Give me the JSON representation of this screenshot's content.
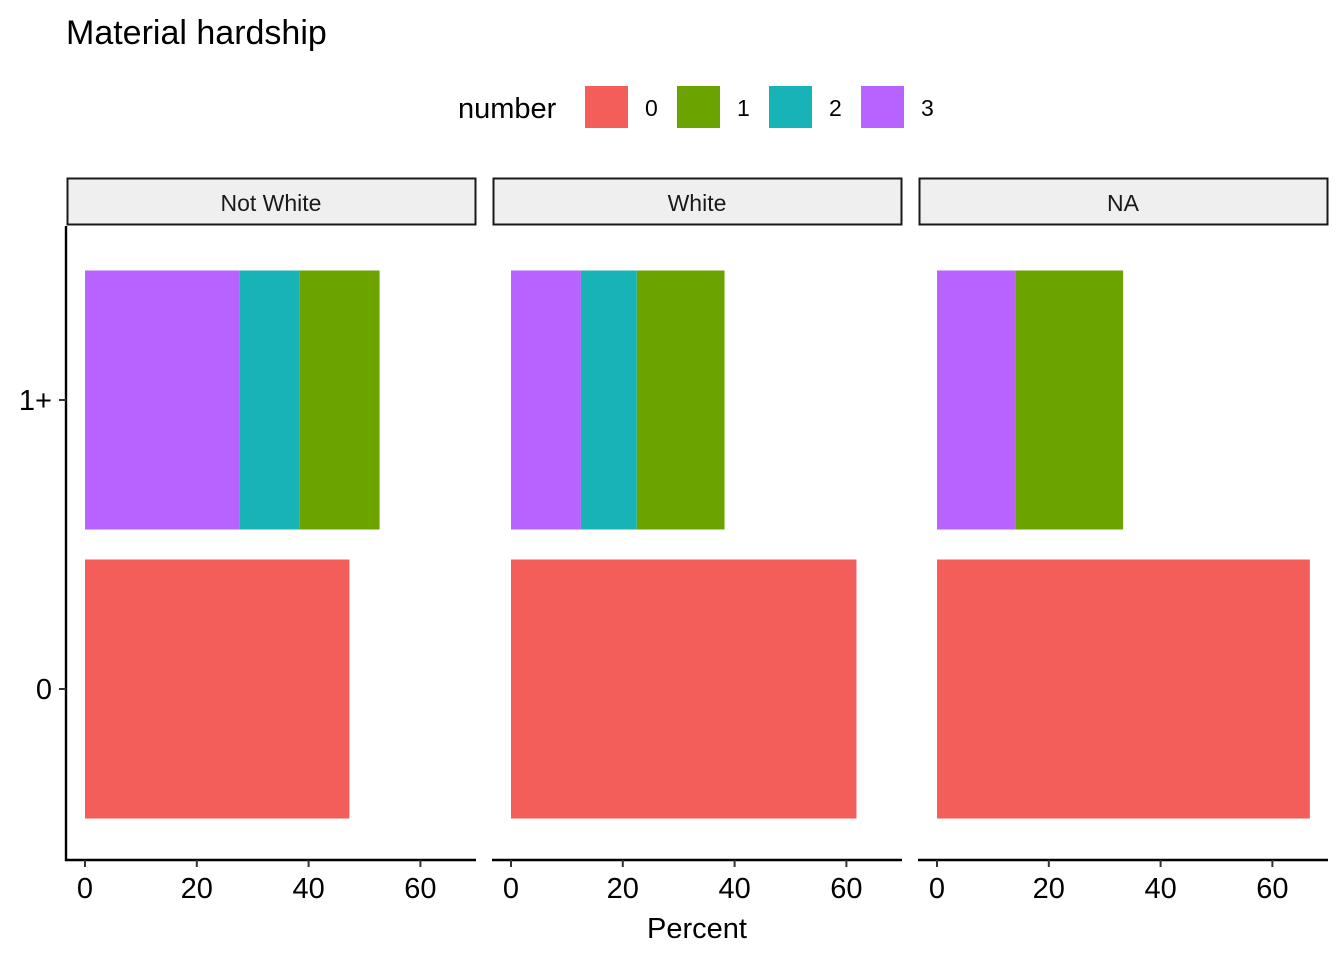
{
  "chart_data": {
    "type": "bar",
    "orientation": "horizontal",
    "stacked": true,
    "title": "Material hardship",
    "xlabel": "Percent",
    "ylabel": "",
    "xlim": [
      0,
      70
    ],
    "x_ticks": [
      0,
      20,
      40,
      60
    ],
    "categories": [
      "1+",
      "0"
    ],
    "legend": {
      "title": "number",
      "placement": "top",
      "entries": [
        {
          "name": "0",
          "color": "#F8766D"
        },
        {
          "name": "1",
          "color": "#7CAE00"
        },
        {
          "name": "2",
          "color": "#00BFC4"
        },
        {
          "name": "3",
          "color": "#C77CFF"
        }
      ]
    },
    "colors": {
      "0": "#F35E5A",
      "1": "#6BA400",
      "2": "#17B3B7",
      "3": "#B862FF"
    },
    "grid": false,
    "facets": [
      {
        "label": "Not White",
        "bars": [
          {
            "category": "1+",
            "segments": [
              {
                "number": "3",
                "value": 27.7
              },
              {
                "number": "2",
                "value": 10.7
              },
              {
                "number": "1",
                "value": 14.3
              }
            ]
          },
          {
            "category": "0",
            "segments": [
              {
                "number": "0",
                "value": 47.3
              }
            ]
          }
        ]
      },
      {
        "label": "White",
        "bars": [
          {
            "category": "1+",
            "segments": [
              {
                "number": "3",
                "value": 12.5
              },
              {
                "number": "2",
                "value": 10.0
              },
              {
                "number": "1",
                "value": 15.7
              }
            ]
          },
          {
            "category": "0",
            "segments": [
              {
                "number": "0",
                "value": 61.8
              }
            ]
          }
        ]
      },
      {
        "label": "NA",
        "bars": [
          {
            "category": "1+",
            "segments": [
              {
                "number": "3",
                "value": 14.0
              },
              {
                "number": "1",
                "value": 19.3
              }
            ]
          },
          {
            "category": "0",
            "segments": [
              {
                "number": "0",
                "value": 66.7
              }
            ]
          }
        ]
      }
    ]
  }
}
